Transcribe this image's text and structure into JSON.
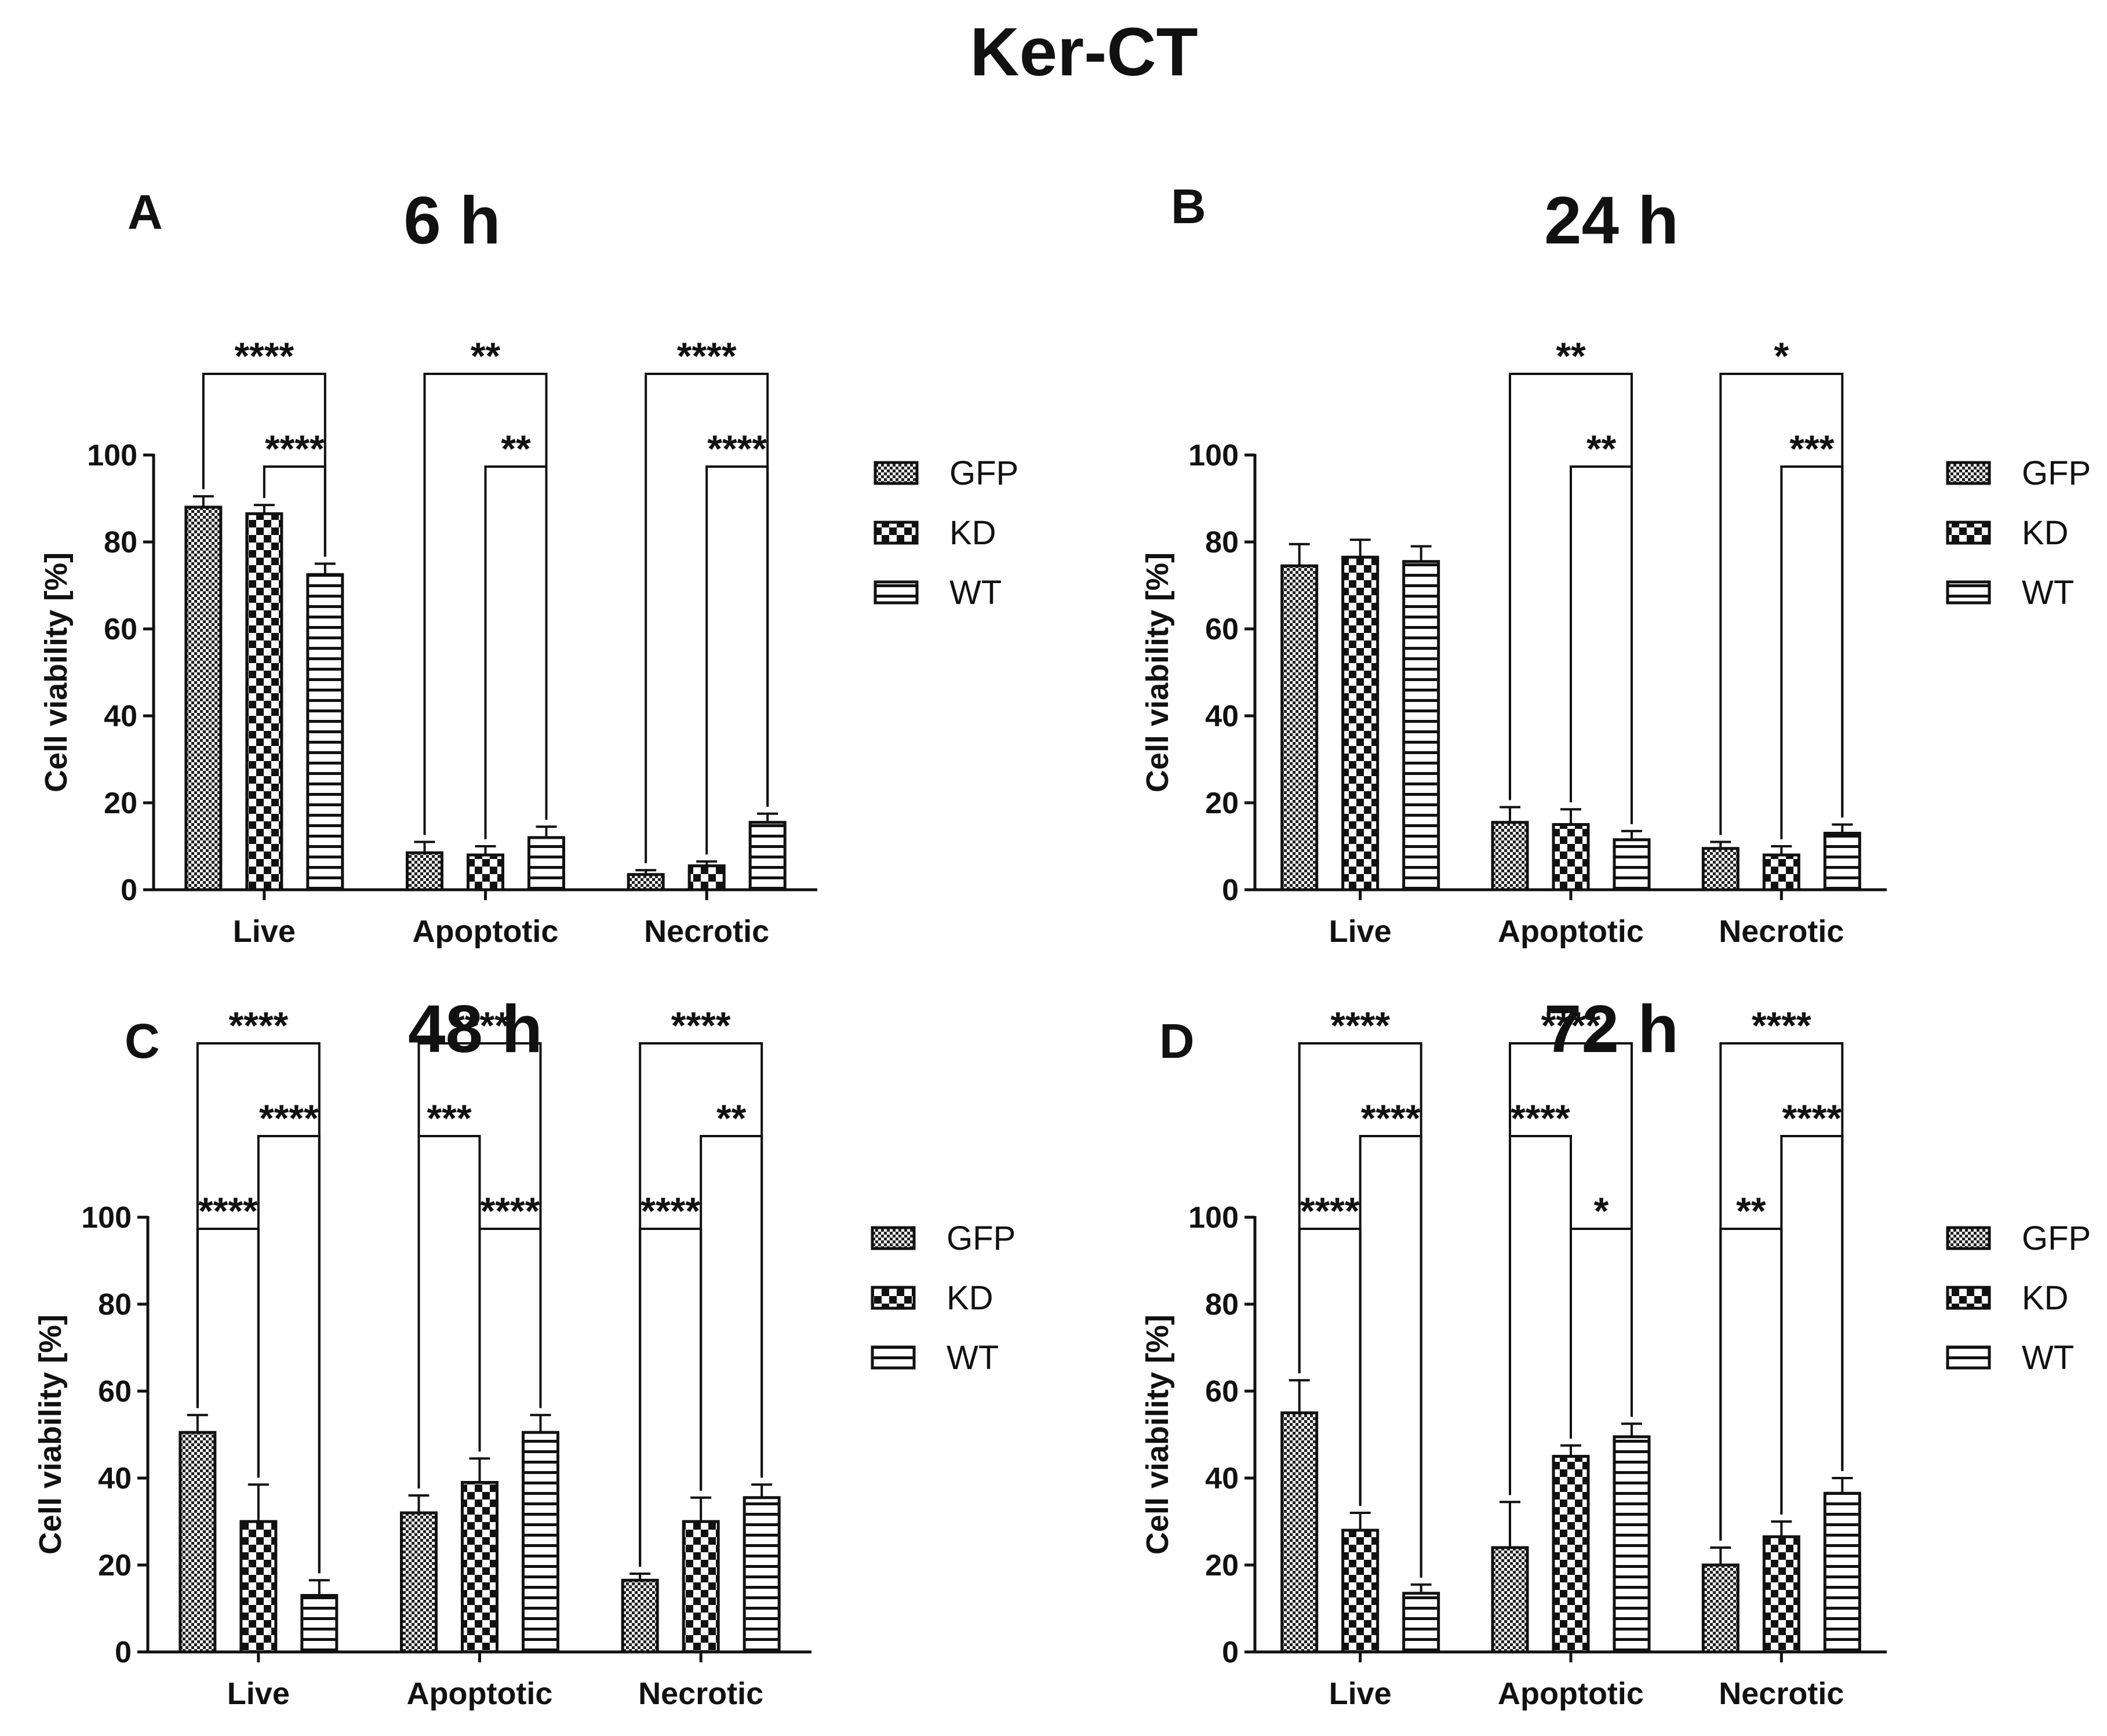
{
  "figure_title": "Ker-CT",
  "chart_data": [
    {
      "panel": "A",
      "title": "6 h",
      "type": "bar",
      "ylabel": "Cell viability [%]",
      "ylim": [
        0,
        100
      ],
      "yticks": [
        0,
        20,
        40,
        60,
        80,
        100
      ],
      "categories": [
        "Live",
        "Apoptotic",
        "Necrotic"
      ],
      "series": [
        {
          "name": "GFP",
          "values": [
            88,
            8.5,
            3.5
          ],
          "errors": [
            2.5,
            2.5,
            1
          ]
        },
        {
          "name": "KD",
          "values": [
            86.5,
            8,
            5.5
          ],
          "errors": [
            2,
            2,
            1
          ]
        },
        {
          "name": "WT",
          "values": [
            72.5,
            12,
            15.5
          ],
          "errors": [
            2.5,
            2.5,
            2
          ]
        }
      ],
      "legend": "right",
      "comparisons": [
        {
          "category": "Live",
          "from": "GFP",
          "to": "WT",
          "label": "****",
          "level": 1
        },
        {
          "category": "Live",
          "from": "KD",
          "to": "WT",
          "label": "****",
          "level": 0
        },
        {
          "category": "Apoptotic",
          "from": "GFP",
          "to": "WT",
          "label": "**",
          "level": 1
        },
        {
          "category": "Apoptotic",
          "from": "KD",
          "to": "WT",
          "label": "**",
          "level": 0
        },
        {
          "category": "Necrotic",
          "from": "GFP",
          "to": "WT",
          "label": "****",
          "level": 1
        },
        {
          "category": "Necrotic",
          "from": "KD",
          "to": "WT",
          "label": "****",
          "level": 0
        }
      ]
    },
    {
      "panel": "B",
      "title": "24 h",
      "type": "bar",
      "ylabel": "Cell viability [%]",
      "ylim": [
        0,
        100
      ],
      "yticks": [
        0,
        20,
        40,
        60,
        80,
        100
      ],
      "categories": [
        "Live",
        "Apoptotic",
        "Necrotic"
      ],
      "series": [
        {
          "name": "GFP",
          "values": [
            74.5,
            15.5,
            9.5
          ],
          "errors": [
            5,
            3.5,
            1.5
          ]
        },
        {
          "name": "KD",
          "values": [
            76.5,
            15,
            8
          ],
          "errors": [
            4,
            3.5,
            2
          ]
        },
        {
          "name": "WT",
          "values": [
            75.5,
            11.5,
            13
          ],
          "errors": [
            3.5,
            2,
            2
          ]
        }
      ],
      "legend": "right",
      "comparisons": [
        {
          "category": "Apoptotic",
          "from": "GFP",
          "to": "WT",
          "label": "**",
          "level": 1
        },
        {
          "category": "Apoptotic",
          "from": "KD",
          "to": "WT",
          "label": "**",
          "level": 0
        },
        {
          "category": "Necrotic",
          "from": "GFP",
          "to": "WT",
          "label": "*",
          "level": 1
        },
        {
          "category": "Necrotic",
          "from": "KD",
          "to": "WT",
          "label": "***",
          "level": 0
        }
      ]
    },
    {
      "panel": "C",
      "title": "48 h",
      "type": "bar",
      "ylabel": "Cell viability [%]",
      "ylim": [
        0,
        100
      ],
      "yticks": [
        0,
        20,
        40,
        60,
        80,
        100
      ],
      "categories": [
        "Live",
        "Apoptotic",
        "Necrotic"
      ],
      "series": [
        {
          "name": "GFP",
          "values": [
            50.5,
            32,
            16.5
          ],
          "errors": [
            4,
            4,
            1.5
          ]
        },
        {
          "name": "KD",
          "values": [
            30,
            39,
            30
          ],
          "errors": [
            8.5,
            5.5,
            5.5
          ]
        },
        {
          "name": "WT",
          "values": [
            13,
            50.5,
            35.5
          ],
          "errors": [
            3.5,
            4,
            3
          ]
        }
      ],
      "legend": "right",
      "comparisons": [
        {
          "category": "Live",
          "from": "GFP",
          "to": "WT",
          "label": "****",
          "level": 2
        },
        {
          "category": "Live",
          "from": "KD",
          "to": "WT",
          "label": "****",
          "level": 1
        },
        {
          "category": "Live",
          "from": "GFP",
          "to": "KD",
          "label": "****",
          "level": 0
        },
        {
          "category": "Apoptotic",
          "from": "GFP",
          "to": "WT",
          "label": "****",
          "level": 2
        },
        {
          "category": "Apoptotic",
          "from": "GFP",
          "to": "KD",
          "label": "***",
          "level": 1
        },
        {
          "category": "Apoptotic",
          "from": "KD",
          "to": "WT",
          "label": "****",
          "level": 0
        },
        {
          "category": "Necrotic",
          "from": "GFP",
          "to": "WT",
          "label": "****",
          "level": 2
        },
        {
          "category": "Necrotic",
          "from": "KD",
          "to": "WT",
          "label": "**",
          "level": 1
        },
        {
          "category": "Necrotic",
          "from": "GFP",
          "to": "KD",
          "label": "****",
          "level": 0
        }
      ]
    },
    {
      "panel": "D",
      "title": "72 h",
      "type": "bar",
      "ylabel": "Cell viability [%]",
      "ylim": [
        0,
        100
      ],
      "yticks": [
        0,
        20,
        40,
        60,
        80,
        100
      ],
      "categories": [
        "Live",
        "Apoptotic",
        "Necrotic"
      ],
      "series": [
        {
          "name": "GFP",
          "values": [
            55,
            24,
            20
          ],
          "errors": [
            7.5,
            10.5,
            4
          ]
        },
        {
          "name": "KD",
          "values": [
            28,
            45,
            26.5
          ],
          "errors": [
            4,
            2.5,
            3.5
          ]
        },
        {
          "name": "WT",
          "values": [
            13.5,
            49.5,
            36.5
          ],
          "errors": [
            2,
            3,
            3.5
          ]
        }
      ],
      "legend": "right",
      "comparisons": [
        {
          "category": "Live",
          "from": "GFP",
          "to": "WT",
          "label": "****",
          "level": 2
        },
        {
          "category": "Live",
          "from": "KD",
          "to": "WT",
          "label": "****",
          "level": 1
        },
        {
          "category": "Live",
          "from": "GFP",
          "to": "KD",
          "label": "****",
          "level": 0
        },
        {
          "category": "Apoptotic",
          "from": "GFP",
          "to": "WT",
          "label": "****",
          "level": 2
        },
        {
          "category": "Apoptotic",
          "from": "GFP",
          "to": "KD",
          "label": "****",
          "level": 1
        },
        {
          "category": "Apoptotic",
          "from": "KD",
          "to": "WT",
          "label": "*",
          "level": 0
        },
        {
          "category": "Necrotic",
          "from": "GFP",
          "to": "WT",
          "label": "****",
          "level": 2
        },
        {
          "category": "Necrotic",
          "from": "KD",
          "to": "WT",
          "label": "****",
          "level": 1
        },
        {
          "category": "Necrotic",
          "from": "GFP",
          "to": "KD",
          "label": "**",
          "level": 0
        }
      ]
    }
  ]
}
